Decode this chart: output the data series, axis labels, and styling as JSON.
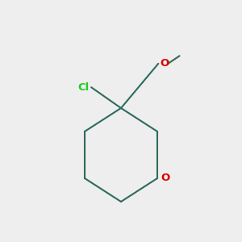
{
  "bg_color": "#eeeeee",
  "bond_color": "#2d6b5e",
  "bond_width": 1.5,
  "cl_color": "#22cc22",
  "o_color": "#dd0000",
  "cl_label": "Cl",
  "o_ring_label": "O",
  "o_chain_label": "O",
  "font_size_atom": 9.5,
  "figsize": [
    3.0,
    3.0
  ],
  "dpi": 100
}
